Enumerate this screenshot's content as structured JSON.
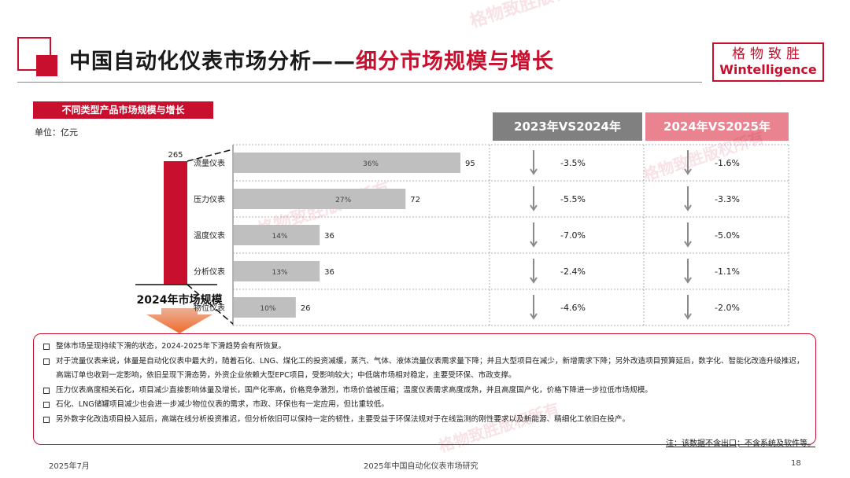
{
  "header": {
    "title_main": "中国自动化仪表市场分析——",
    "title_accent": "细分市场规模与增长",
    "brand_cn": "格物致胜",
    "brand_en": "Wintelligence"
  },
  "watermark": "格物致胜版权所有",
  "subtitle": "不同类型产品市场规模与增长",
  "unit": "单位：亿元",
  "column_headers": [
    "2023年VS2024年",
    "2024年VS2025年"
  ],
  "chart_data": {
    "type": "bar",
    "total": {
      "label": "2024年市场规模",
      "value": 265
    },
    "categories": [
      "流量仪表",
      "压力仪表",
      "温度仪表",
      "分析仪表",
      "物位仪表"
    ],
    "values": [
      95,
      72,
      36,
      36,
      26
    ],
    "share_labels": [
      "36%",
      "27%",
      "14%",
      "13%",
      "10%"
    ],
    "growth_2023_vs_2024": [
      "-3.5%",
      "-5.5%",
      "-7.0%",
      "-2.4%",
      "-4.6%"
    ],
    "growth_2024_vs_2025": [
      "-1.6%",
      "-3.3%",
      "-5.0%",
      "-1.1%",
      "-2.0%"
    ],
    "colors": {
      "total_bar": "#c8102e",
      "segment_bar": "#bfbfbf",
      "accent": "#c8102e"
    }
  },
  "notes": [
    "整体市场呈现持续下滑的状态，2024-2025年下滑趋势会有所恢复。",
    "对于流量仪表来说，体量是自动化仪表中最大的，随着石化、LNG、煤化工的投资减缓，蒸汽、气体、液体流量仪表需求量下降；并且大型项目在减少，新增需求下降；另外改造项目预算延后，数字化、智能化改造升级推迟，高端订单也收到一定影响，依旧呈现下滑态势，外资企业依赖大型EPC项目，受影响较大；中低端市场相对稳定，主要受环保、市政支撑。",
    "压力仪表高度相关石化，项目减少直接影响体量及增长，国产化率高，价格竞争激烈，市场价值被压缩；温度仪表需求高度成熟，并且高度国产化，价格下降进一步拉低市场规模。",
    "石化、LNG储罐项目减少也会进一步减少物位仪表的需求，市政、环保也有一定应用，但比重较低。",
    "另外数字化改造项目投入延后，高端在线分析投资推迟，但分析依旧可以保持一定的韧性，主要受益于环保法规对于在线监测的刚性要求以及新能源、精细化工依旧在投产。"
  ],
  "footnote": "注：该数据不含出口；不含系统及软件等。",
  "footer": {
    "date": "2025年7月",
    "doc_title": "2025年中国自动化仪表市场研究",
    "page": "18"
  }
}
